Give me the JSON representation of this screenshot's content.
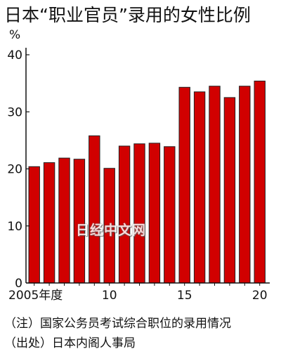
{
  "chart_data": {
    "type": "bar",
    "title": "日本“职业官员”录用的女性比例",
    "ylabel": "%",
    "xlabel": "",
    "x": [
      2005,
      2006,
      2007,
      2008,
      2009,
      2010,
      2011,
      2012,
      2013,
      2014,
      2015,
      2016,
      2017,
      2018,
      2019,
      2020
    ],
    "values": [
      20.4,
      21.1,
      21.9,
      21.7,
      25.8,
      20.1,
      24.0,
      24.4,
      24.5,
      23.9,
      34.3,
      33.5,
      34.5,
      32.5,
      34.5,
      35.4
    ],
    "ylim": [
      0,
      40
    ],
    "yticks": [
      0,
      10,
      20,
      30,
      40
    ],
    "xtick_labels": [
      {
        "x": 2005,
        "label": "2005年度"
      },
      {
        "x": 2010,
        "label": "10"
      },
      {
        "x": 2015,
        "label": "15"
      },
      {
        "x": 2020,
        "label": "20"
      }
    ],
    "grid": false,
    "bar_color": "#d10000"
  },
  "notes": {
    "note": "（注）国家公务员考试综合职位的录用情况",
    "source": "（出处）日本内阁人事局"
  },
  "watermark": "日经中文网"
}
